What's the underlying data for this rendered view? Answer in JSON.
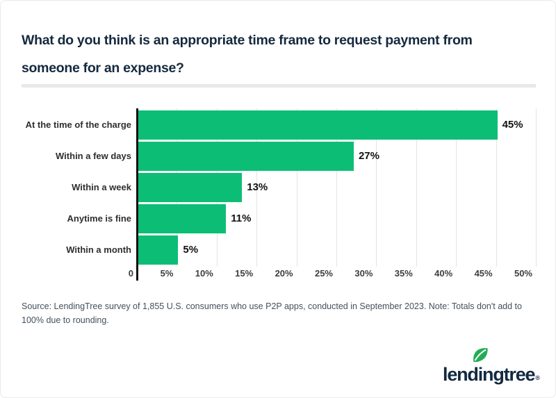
{
  "header": {
    "title_lines": [
      "What do you think is an appropriate time frame to request payment from",
      "someone for an expense?"
    ]
  },
  "chart_data": {
    "type": "bar",
    "orientation": "horizontal",
    "title": "What do you think is an appropriate time frame to request payment from someone for an expense?",
    "categories": [
      "At the time of the charge",
      "Within a few days",
      "Within a week",
      "Anytime is fine",
      "Within a month"
    ],
    "values": [
      45,
      27,
      13,
      11,
      5
    ],
    "value_labels": [
      "45%",
      "27%",
      "13%",
      "11%",
      "5%"
    ],
    "x_ticks": [
      "0",
      "5%",
      "10%",
      "15%",
      "20%",
      "25%",
      "30%",
      "35%",
      "40%",
      "45%",
      "50%"
    ],
    "x_tick_values": [
      0,
      5,
      10,
      15,
      20,
      25,
      30,
      35,
      40,
      45,
      50
    ],
    "xlabel": "",
    "ylabel": "",
    "xlim": [
      0,
      50
    ],
    "grid": true,
    "legend": false,
    "bar_color": "#0cbe75"
  },
  "footer": {
    "source_note": "Source: LendingTree survey of 1,855 U.S. consumers who use P2P apps, conducted in September 2023. Note: Totals don't add to 100% due to rounding."
  },
  "branding": {
    "logo_text": "lendingtree",
    "registered_mark": "®",
    "leaf_color": "#23ac55"
  },
  "colors": {
    "title": "#14293e",
    "bar_green": "#0cbe75",
    "divider": "#e8e8e8",
    "gridline": "#e4e4e4",
    "axis_line": "#111111",
    "tick_label": "#3d3d3d",
    "category_label": "#2e2e2e",
    "value_label": "#111111",
    "source_text": "#44505c",
    "logo": "#122a41"
  }
}
